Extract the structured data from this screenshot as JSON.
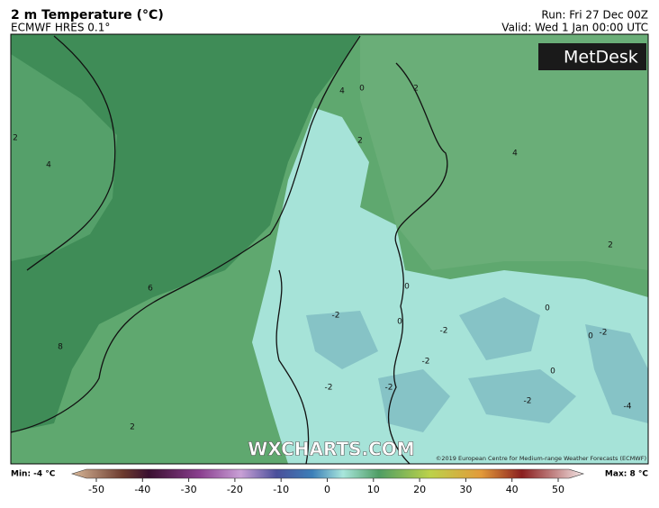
{
  "header": {
    "title": "2 m Temperature (°C)",
    "subtitle": "ECMWF HRES 0.1°",
    "run": "Run: Fri 27 Dec 00Z",
    "valid": "Valid: Wed 1 Jan 00:00 UTC"
  },
  "logo": "MetDesk",
  "watermark": "WXCHARTS.COM",
  "copyright": "©2019 European Centre for Medium-range Weather Forecasts (ECMWF)",
  "contour_labels": [
    2,
    4,
    6,
    8,
    2,
    4,
    0,
    2,
    2,
    4,
    2,
    0,
    -2,
    0,
    -2,
    0,
    0,
    -2,
    -2,
    0,
    -2,
    -2,
    -2,
    -4
  ],
  "colorbar": {
    "min_label": "Min: -4 °C",
    "max_label": "Max: 8 °C",
    "ticks": [
      -50,
      -40,
      -30,
      -20,
      -10,
      0,
      10,
      20,
      30,
      40,
      50
    ]
  }
}
